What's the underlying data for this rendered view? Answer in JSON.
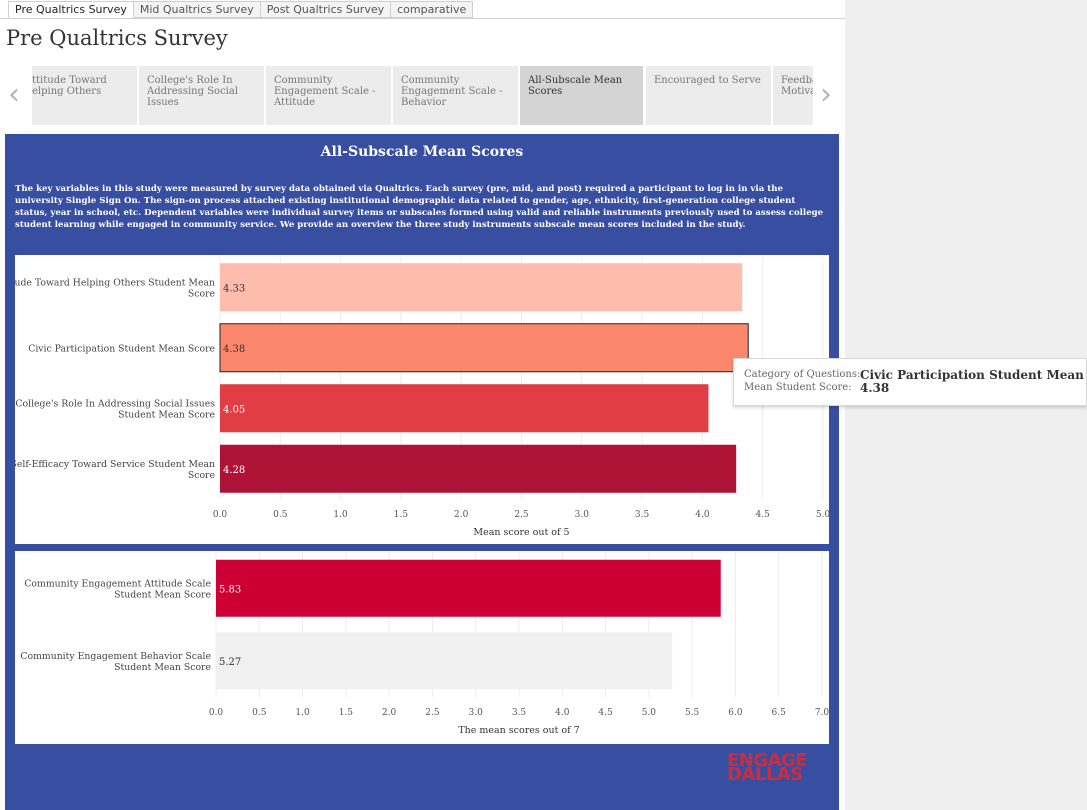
{
  "tabs": [
    "Pre Qualtrics Survey",
    "Mid Qualtrics Survey",
    "Post Qualtrics Survey",
    "comparative"
  ],
  "page_title": "Pre Qualtrics Survey",
  "story_points": [
    "ttitude Toward elping Others",
    "College's Role In Addressing Social Issues",
    "Community Engagement Scale - Attitude",
    "Community Engagement Scale - Behavior",
    "All-Subscale Mean Scores",
    "Encouraged to Serve",
    "Feedba Motiva"
  ],
  "dashboard": {
    "title": "All-Subscale Mean Scores",
    "description": "The key variables in this study were measured by survey data obtained via Qualtrics. Each survey (pre, mid, and post) required a participant to log in in via the university Single Sign On. The sign-on process attached existing institutional demographic data related to gender, age, ethnicity, first-generation college student status, year in school, etc. Dependent variables were individual survey items or subscales formed using valid and reliable instruments previously used to assess college student learning while engaged in community service. We provide an overview the three study instruments subscale mean scores included in the study."
  },
  "tooltip": {
    "label1": "Category of Questions:",
    "value1": "Civic Participation Student Mean Score",
    "label2": "Mean Student Score:",
    "value2": "4.38"
  },
  "logo_text": [
    "ENGAGE",
    "DALLAS"
  ],
  "chart_data": [
    {
      "type": "bar",
      "orientation": "horizontal",
      "categories": [
        "Attitude Toward Helping Others Student Mean Score",
        "Civic Participation Student Mean Score",
        "College's Role In Addressing Social Issues Student Mean Score",
        "Self-Efficacy Toward Service Student  Mean Score"
      ],
      "values": [
        4.33,
        4.38,
        4.05,
        4.28
      ],
      "labels": [
        "4.33",
        "4.38",
        "4.05",
        "4.28"
      ],
      "colors": [
        "#fdbcac",
        "#fb876d",
        "#e23d45",
        "#ae1235"
      ],
      "highlighted_index": 1,
      "xlabel": "Mean score out of 5",
      "ticks": [
        "0.0",
        "0.5",
        "1.0",
        "1.5",
        "2.0",
        "2.5",
        "3.0",
        "3.5",
        "4.0",
        "4.5",
        "5.0"
      ],
      "xlim": [
        0,
        5
      ],
      "grid": true
    },
    {
      "type": "bar",
      "orientation": "horizontal",
      "categories": [
        "Community Engagement Attitude Scale Student Mean Score",
        "Community Engagement Behavior Scale Student Mean Score"
      ],
      "values": [
        5.83,
        5.27
      ],
      "labels": [
        "5.83",
        "5.27"
      ],
      "colors": [
        "#cc0033",
        "#f0f0f0"
      ],
      "xlabel": "The mean scores out of 7",
      "ticks": [
        "0.0",
        "0.5",
        "1.0",
        "1.5",
        "2.0",
        "2.5",
        "3.0",
        "3.5",
        "4.0",
        "4.5",
        "5.0",
        "5.5",
        "6.0",
        "6.5",
        "7.0"
      ],
      "xlim": [
        0,
        7
      ],
      "grid": true
    }
  ]
}
